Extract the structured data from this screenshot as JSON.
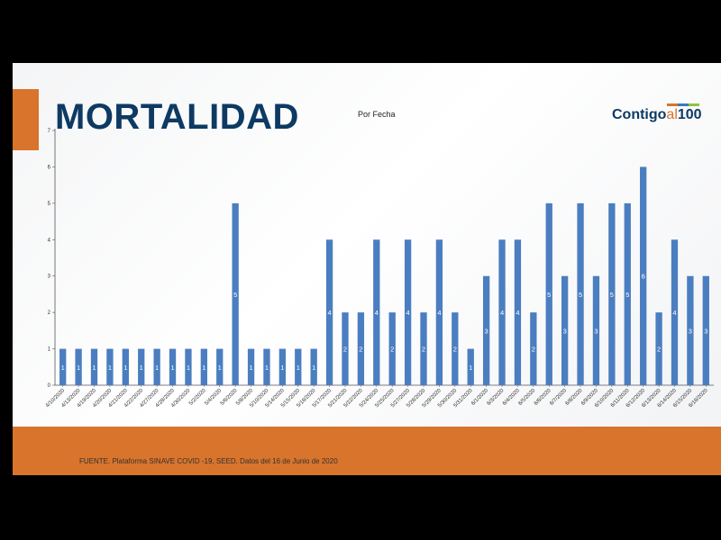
{
  "slide": {
    "title": "MORTALIDAD",
    "logo_main": "Contigo",
    "logo_al": "al",
    "logo_num": "100",
    "source": "FUENTE. Plataforma SINAVE COVID -19, SEED. Datos del 16 de Junio de 2020"
  },
  "chart_data": {
    "type": "bar",
    "title": "Por Fecha",
    "xlabel": "",
    "ylabel": "",
    "ylim": [
      0,
      7
    ],
    "yticks": [
      0,
      1,
      2,
      3,
      4,
      5,
      6,
      7
    ],
    "grid": false,
    "legend": "none",
    "color": "#4a7ec0",
    "categories": [
      "4/10/2020",
      "4/13/2020",
      "4/19/2020",
      "4/20/2020",
      "4/21/2020",
      "4/22/2020",
      "4/27/2020",
      "4/28/2020",
      "4/30/2020",
      "5/2/2020",
      "5/4/2020",
      "5/6/2020",
      "5/8/2020",
      "5/10/2020",
      "5/14/2020",
      "5/15/2020",
      "5/16/2020",
      "5/17/2020",
      "5/21/2020",
      "5/22/2020",
      "5/24/2020",
      "5/25/2020",
      "5/27/2020",
      "5/28/2020",
      "5/29/2020",
      "5/30/2020",
      "5/31/2020",
      "6/1/2020",
      "6/3/2020",
      "6/4/2020",
      "6/5/2020",
      "6/6/2020",
      "6/7/2020",
      "6/8/2020",
      "6/9/2020",
      "6/10/2020",
      "6/11/2020",
      "6/12/2020",
      "6/13/2020",
      "6/14/2020",
      "6/15/2020",
      "6/16/2020"
    ],
    "values": [
      1,
      1,
      1,
      1,
      1,
      1,
      1,
      1,
      1,
      1,
      1,
      5,
      1,
      1,
      1,
      1,
      1,
      4,
      2,
      2,
      4,
      2,
      4,
      2,
      4,
      2,
      1,
      3,
      4,
      4,
      2,
      5,
      3,
      5,
      3,
      5,
      5,
      6,
      2,
      4,
      3,
      3
    ]
  }
}
